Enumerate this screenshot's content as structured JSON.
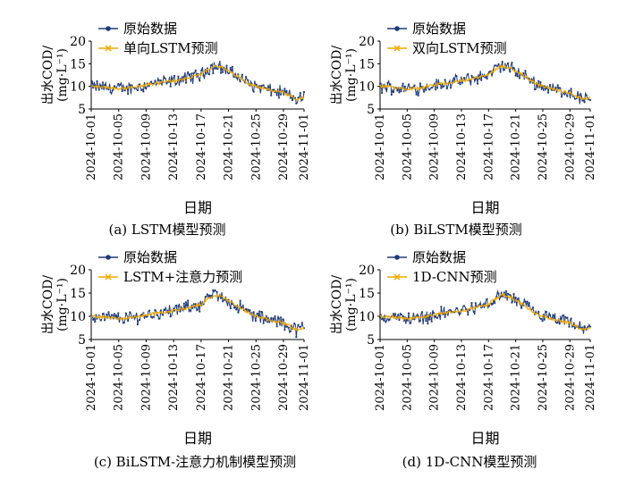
{
  "chart_data": [
    {
      "type": "line",
      "caption": "(a) LSTM模型预测",
      "xlabel": "日期",
      "ylabel_line1": "出水COD/",
      "ylabel_line2": "(mg·L⁻¹)",
      "ylim": [
        5,
        20
      ],
      "yticks": [
        "5",
        "10",
        "15",
        "20"
      ],
      "xticks": [
        "2024-10-01",
        "2024-10-05",
        "2024-10-09",
        "2024-10-13",
        "2024-10-17",
        "2024-10-21",
        "2024-10-25",
        "2024-10-29",
        "2024-11-01"
      ],
      "legend_placement": "top-left",
      "series": [
        {
          "name": "原始数据",
          "color": "#1f3b7a",
          "marker": "dot"
        },
        {
          "name": "单向LSTM预测",
          "color": "#f2a900",
          "marker": "x"
        }
      ],
      "trend": {
        "x_days": [
          0,
          2,
          4,
          6,
          8,
          10,
          12,
          14,
          16,
          17,
          18,
          19,
          20,
          21,
          22,
          23,
          24,
          25,
          26,
          28,
          29,
          30,
          31
        ],
        "y": [
          10,
          9.8,
          9.5,
          9.7,
          10.3,
          10.8,
          11.2,
          11.8,
          12.6,
          13.8,
          14.6,
          14.2,
          13.3,
          12.5,
          11.6,
          10.6,
          10.0,
          9.6,
          9.2,
          8.6,
          7.8,
          7.0,
          7.6
        ]
      }
    },
    {
      "type": "line",
      "caption": "(b) BiLSTM模型预测",
      "xlabel": "日期",
      "ylabel_line1": "出水COD/",
      "ylabel_line2": "(mg·L⁻¹)",
      "ylim": [
        5,
        20
      ],
      "yticks": [
        "5",
        "10",
        "15",
        "20"
      ],
      "xticks": [
        "2024-10-01",
        "2024-10-05",
        "2024-10-09",
        "2024-10-13",
        "2024-10-17",
        "2024-10-21",
        "2024-10-25",
        "2024-10-29",
        "2024-11-01"
      ],
      "legend_placement": "top-left",
      "series": [
        {
          "name": "原始数据",
          "color": "#1f3b7a",
          "marker": "dot"
        },
        {
          "name": "双向LSTM预测",
          "color": "#f2a900",
          "marker": "x"
        }
      ],
      "trend": {
        "x_days": [
          0,
          2,
          4,
          6,
          8,
          10,
          12,
          14,
          16,
          17,
          18,
          19,
          20,
          21,
          22,
          23,
          24,
          25,
          26,
          28,
          29,
          30,
          31
        ],
        "y": [
          10,
          9.8,
          9.5,
          9.7,
          10.3,
          10.8,
          11.2,
          11.8,
          12.6,
          13.8,
          14.6,
          14.2,
          13.3,
          12.5,
          11.6,
          10.6,
          10.0,
          9.6,
          9.2,
          8.6,
          7.8,
          7.0,
          7.6
        ]
      }
    },
    {
      "type": "line",
      "caption": "(c) BiLSTM-注意力机制模型预测",
      "xlabel": "日期",
      "ylabel_line1": "出水COD/",
      "ylabel_line2": "(mg·L⁻¹)",
      "ylim": [
        5,
        20
      ],
      "yticks": [
        "5",
        "10",
        "15",
        "20"
      ],
      "xticks": [
        "2024-10-01",
        "2024-10-05",
        "2024-10-09",
        "2024-10-13",
        "2024-10-17",
        "2024-10-21",
        "2024-10-25",
        "2024-10-29",
        "2024-11-01"
      ],
      "legend_placement": "top-left",
      "series": [
        {
          "name": "原始数据",
          "color": "#1f3b7a",
          "marker": "dot"
        },
        {
          "name": "LSTM+注意力预测",
          "color": "#f2a900",
          "marker": "x"
        }
      ],
      "trend": {
        "x_days": [
          0,
          2,
          4,
          6,
          8,
          10,
          12,
          14,
          16,
          17,
          18,
          19,
          20,
          21,
          22,
          23,
          24,
          25,
          26,
          28,
          29,
          30,
          31
        ],
        "y": [
          10,
          9.8,
          9.5,
          9.7,
          10.3,
          10.8,
          11.2,
          11.8,
          12.6,
          13.8,
          14.6,
          14.2,
          13.3,
          12.5,
          11.6,
          10.6,
          10.0,
          9.6,
          9.2,
          8.6,
          7.8,
          7.0,
          7.6
        ]
      }
    },
    {
      "type": "line",
      "caption": "(d) 1D-CNN模型预测",
      "xlabel": "日期",
      "ylabel_line1": "出水COD/",
      "ylabel_line2": "(mg·L⁻¹)",
      "ylim": [
        5,
        20
      ],
      "yticks": [
        "5",
        "10",
        "15",
        "20"
      ],
      "xticks": [
        "2024-10-01",
        "2024-10-05",
        "2024-10-09",
        "2024-10-13",
        "2024-10-17",
        "2024-10-21",
        "2024-10-25",
        "2024-10-29",
        "2024-11-01"
      ],
      "legend_placement": "top-left",
      "series": [
        {
          "name": "原始数据",
          "color": "#1f3b7a",
          "marker": "dot"
        },
        {
          "name": "1D-CNN预测",
          "color": "#f2a900",
          "marker": "x"
        }
      ],
      "trend": {
        "x_days": [
          0,
          2,
          4,
          6,
          8,
          10,
          12,
          14,
          16,
          17,
          18,
          19,
          20,
          21,
          22,
          23,
          24,
          25,
          26,
          28,
          29,
          30,
          31
        ],
        "y": [
          10,
          9.8,
          9.5,
          9.7,
          10.3,
          10.8,
          11.2,
          11.8,
          12.6,
          13.8,
          14.6,
          14.2,
          13.3,
          12.5,
          11.6,
          10.6,
          10.0,
          9.6,
          9.2,
          8.6,
          7.8,
          7.0,
          7.6
        ]
      }
    }
  ]
}
